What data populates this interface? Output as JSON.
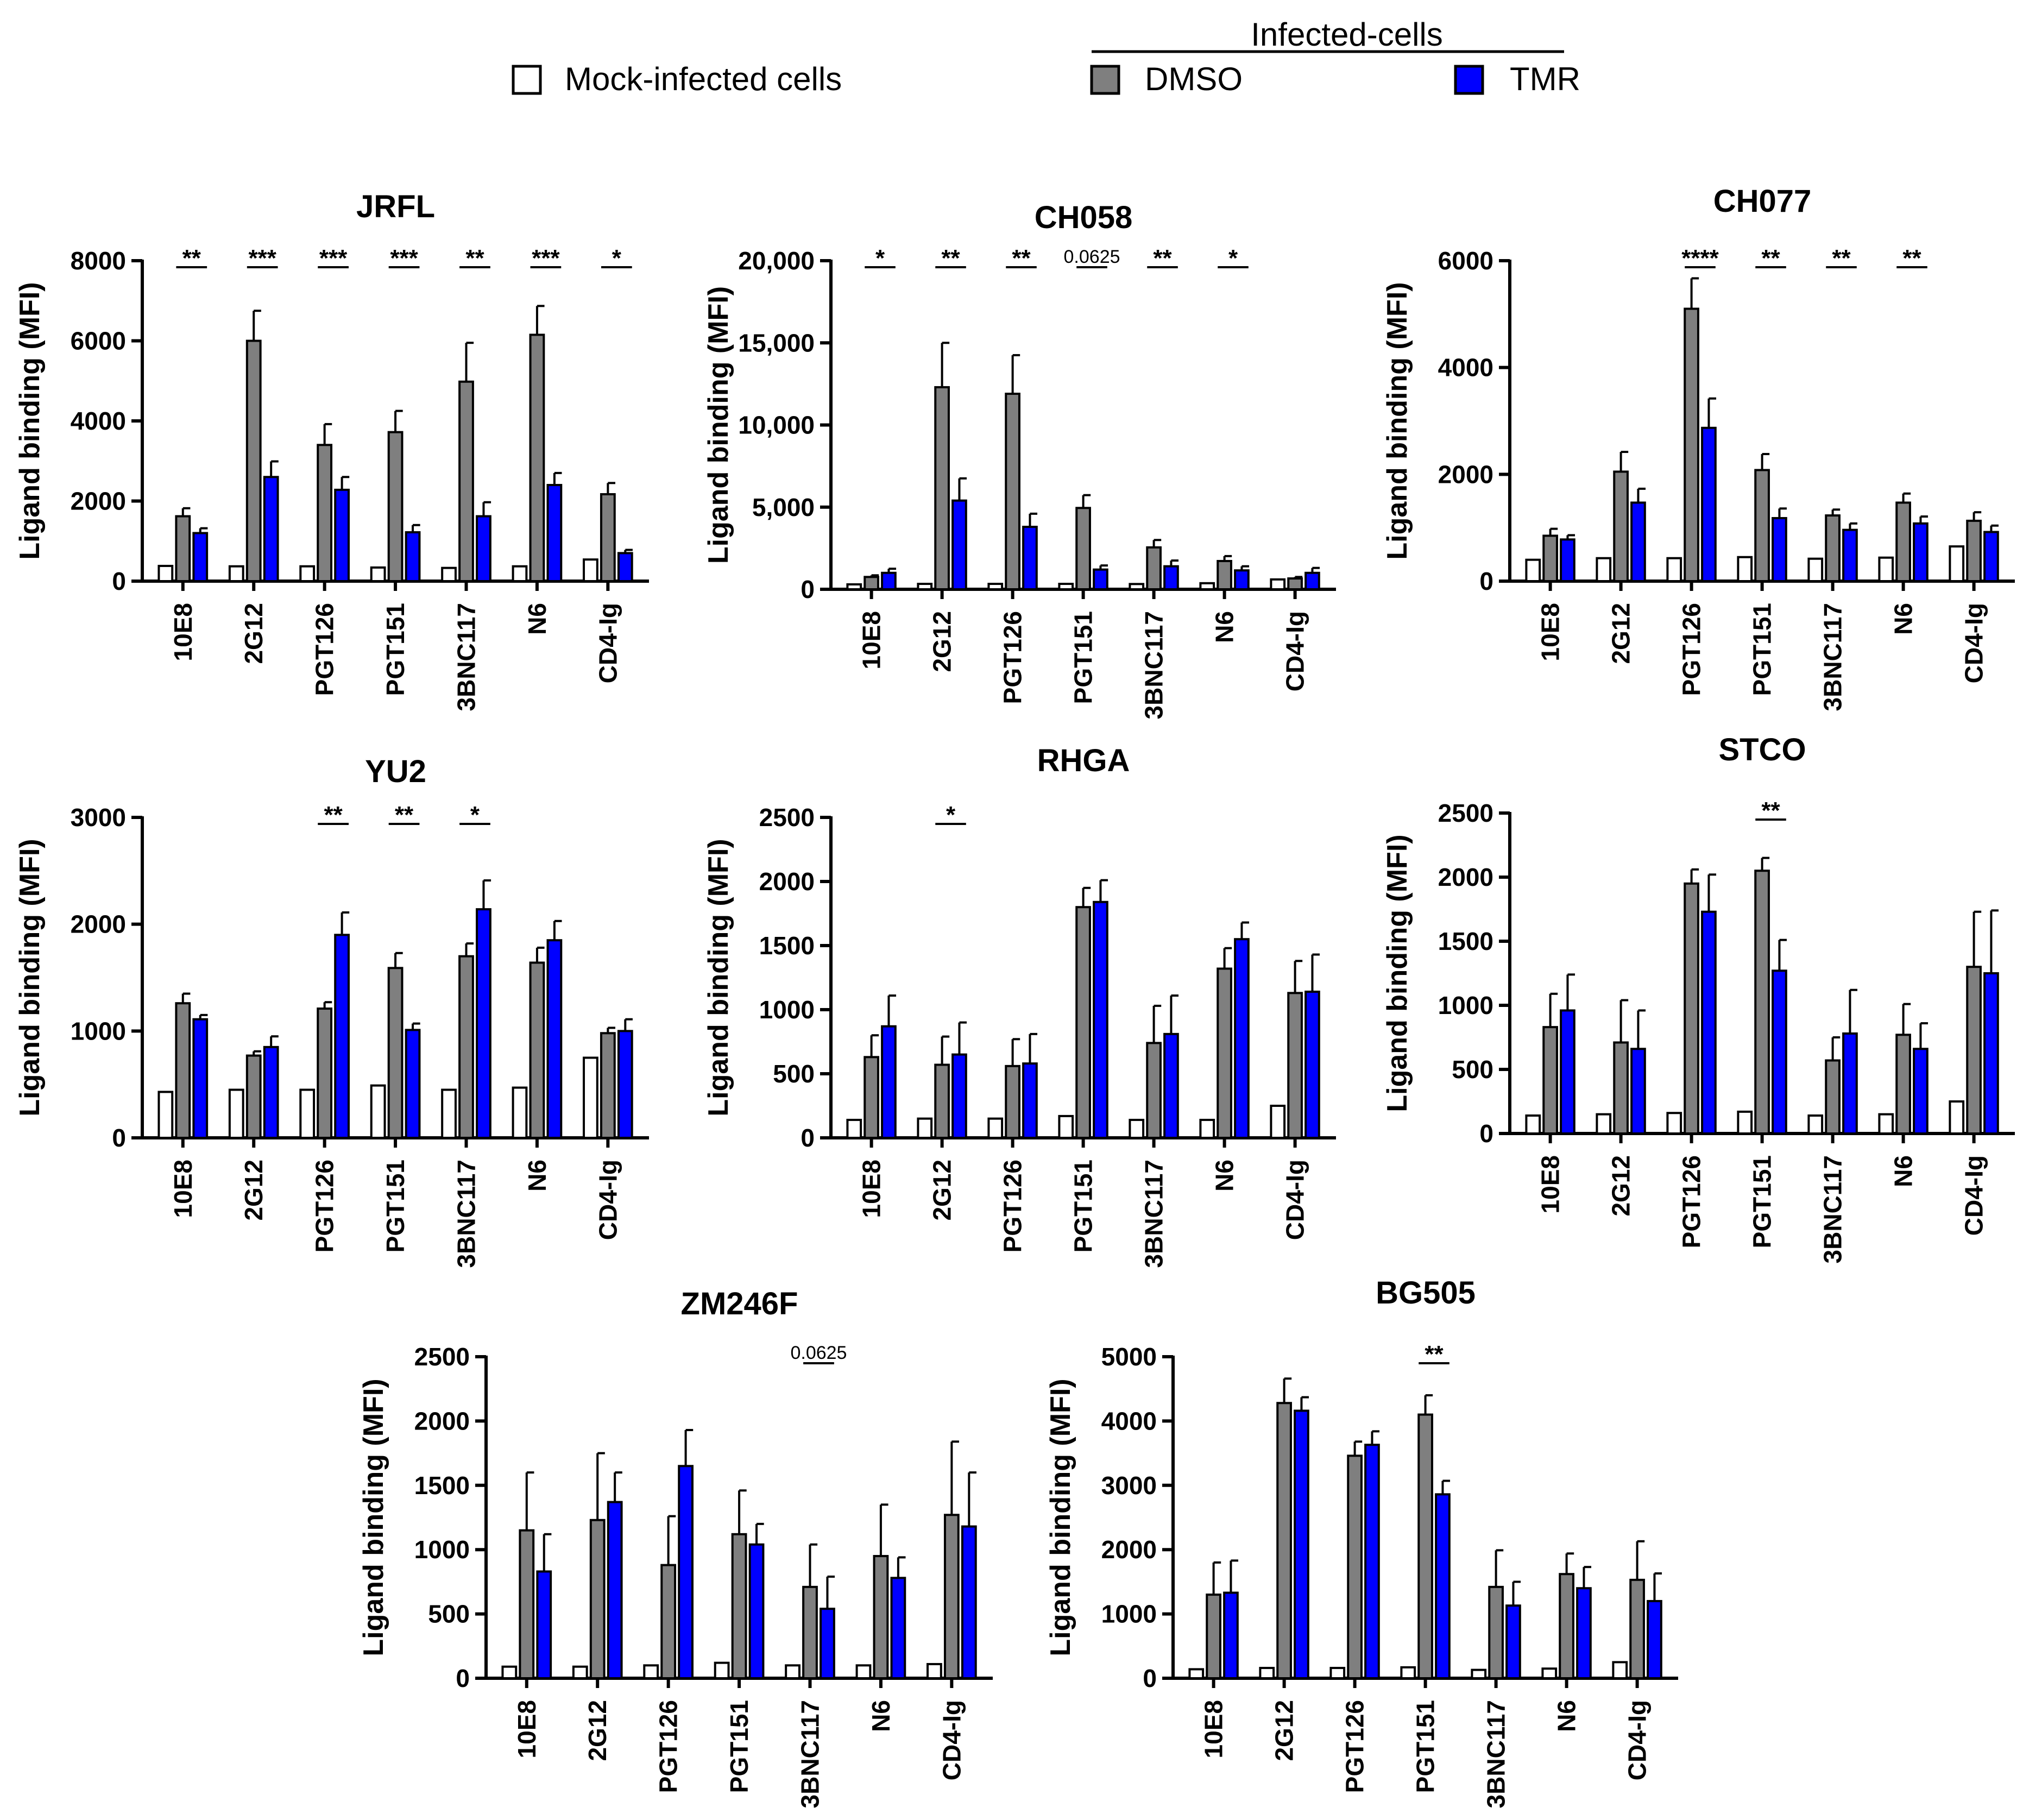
{
  "legend": {
    "mock_label": "Mock-infected cells",
    "group_title": "Infected-cells",
    "dmso_label": "DMSO",
    "tmr_label": "TMR",
    "colors": {
      "mock": "#ffffff",
      "dmso": "#7f7f7f",
      "tmr": "#0000ff",
      "stroke": "#000000"
    }
  },
  "chart_data": [
    {
      "type": "bar",
      "title": "JRFL",
      "ylabel": "Ligand binding (MFI)",
      "categories": [
        "10E8",
        "2G12",
        "PGT126",
        "PGT151",
        "3BNC117",
        "N6",
        "CD4-Ig"
      ],
      "ylim": [
        0,
        8000
      ],
      "yticks": [
        0,
        2000,
        4000,
        6000,
        8000
      ],
      "ytick_labels": [
        "0",
        "2000",
        "4000",
        "6000",
        "8000"
      ],
      "series": [
        {
          "name": "Mock-infected cells",
          "values": [
            380,
            370,
            370,
            340,
            330,
            370,
            540
          ],
          "errors": [
            0,
            0,
            0,
            0,
            0,
            0,
            0
          ]
        },
        {
          "name": "DMSO",
          "values": [
            1620,
            6000,
            3400,
            3720,
            4980,
            6150,
            2170
          ],
          "errors": [
            200,
            750,
            520,
            530,
            970,
            720,
            280
          ]
        },
        {
          "name": "TMR",
          "values": [
            1200,
            2600,
            2280,
            1220,
            1620,
            2400,
            700
          ],
          "errors": [
            120,
            390,
            320,
            180,
            350,
            300,
            80
          ]
        }
      ],
      "significance": [
        {
          "category": "10E8",
          "label": "**"
        },
        {
          "category": "2G12",
          "label": "***"
        },
        {
          "category": "PGT126",
          "label": "***"
        },
        {
          "category": "PGT151",
          "label": "***"
        },
        {
          "category": "3BNC117",
          "label": "**"
        },
        {
          "category": "N6",
          "label": "***"
        },
        {
          "category": "CD4-Ig",
          "label": "*"
        }
      ]
    },
    {
      "type": "bar",
      "title": "CH058",
      "ylabel": "Ligand binding (MFI)",
      "categories": [
        "10E8",
        "2G12",
        "PGT126",
        "PGT151",
        "3BNC117",
        "N6",
        "CD4-Ig"
      ],
      "ylim": [
        0,
        20000
      ],
      "yticks": [
        0,
        5000,
        10000,
        15000,
        20000
      ],
      "ytick_labels": [
        "0",
        "5,000",
        "10,000",
        "15,000",
        "20,000"
      ],
      "series": [
        {
          "name": "Mock-infected cells",
          "values": [
            300,
            330,
            330,
            330,
            320,
            370,
            600
          ],
          "errors": [
            0,
            0,
            0,
            0,
            0,
            0,
            0
          ]
        },
        {
          "name": "DMSO",
          "values": [
            750,
            12300,
            11900,
            4950,
            2550,
            1720,
            660
          ],
          "errors": [
            100,
            2700,
            2350,
            780,
            450,
            300,
            90
          ]
        },
        {
          "name": "TMR",
          "values": [
            1000,
            5400,
            3800,
            1200,
            1400,
            1150,
            1000
          ],
          "errors": [
            250,
            1350,
            800,
            250,
            350,
            250,
            300
          ]
        }
      ],
      "significance": [
        {
          "category": "10E8",
          "label": "*"
        },
        {
          "category": "2G12",
          "label": "**"
        },
        {
          "category": "PGT126",
          "label": "**"
        },
        {
          "category": "PGT151",
          "label": "0.0625"
        },
        {
          "category": "3BNC117",
          "label": "**"
        },
        {
          "category": "N6",
          "label": "*"
        }
      ]
    },
    {
      "type": "bar",
      "title": "CH077",
      "ylabel": "Ligand binding (MFI)",
      "categories": [
        "10E8",
        "2G12",
        "PGT126",
        "PGT151",
        "3BNC117",
        "N6",
        "CD4-Ig"
      ],
      "ylim": [
        0,
        6000
      ],
      "yticks": [
        0,
        2000,
        4000,
        6000
      ],
      "ytick_labels": [
        "0",
        "2000",
        "4000",
        "6000"
      ],
      "series": [
        {
          "name": "Mock-infected cells",
          "values": [
            400,
            430,
            430,
            450,
            420,
            440,
            650
          ],
          "errors": [
            0,
            0,
            0,
            0,
            0,
            0,
            0
          ]
        },
        {
          "name": "DMSO",
          "values": [
            850,
            2050,
            5100,
            2080,
            1230,
            1470,
            1130
          ],
          "errors": [
            130,
            370,
            570,
            300,
            110,
            170,
            160
          ]
        },
        {
          "name": "TMR",
          "values": [
            780,
            1470,
            2870,
            1180,
            960,
            1080,
            920
          ],
          "errors": [
            80,
            260,
            550,
            180,
            120,
            130,
            120
          ]
        }
      ],
      "significance": [
        {
          "category": "PGT126",
          "label": "****"
        },
        {
          "category": "PGT151",
          "label": "**"
        },
        {
          "category": "3BNC117",
          "label": "**"
        },
        {
          "category": "N6",
          "label": "**"
        }
      ]
    },
    {
      "type": "bar",
      "title": "YU2",
      "ylabel": "Ligand binding (MFI)",
      "categories": [
        "10E8",
        "2G12",
        "PGT126",
        "PGT151",
        "3BNC117",
        "N6",
        "CD4-Ig"
      ],
      "ylim": [
        0,
        3000
      ],
      "yticks": [
        0,
        1000,
        2000,
        3000
      ],
      "ytick_labels": [
        "0",
        "1000",
        "2000",
        "3000"
      ],
      "series": [
        {
          "name": "Mock-infected cells",
          "values": [
            430,
            450,
            450,
            490,
            450,
            470,
            750
          ],
          "errors": [
            0,
            0,
            0,
            0,
            0,
            0,
            0
          ]
        },
        {
          "name": "DMSO",
          "values": [
            1260,
            770,
            1210,
            1590,
            1700,
            1640,
            980
          ],
          "errors": [
            90,
            40,
            60,
            140,
            120,
            140,
            50
          ]
        },
        {
          "name": "TMR",
          "values": [
            1110,
            850,
            1900,
            1010,
            2140,
            1850,
            1000
          ],
          "errors": [
            40,
            100,
            210,
            60,
            270,
            180,
            110
          ]
        }
      ],
      "significance": [
        {
          "category": "PGT126",
          "label": "**"
        },
        {
          "category": "PGT151",
          "label": "**"
        },
        {
          "category": "3BNC117",
          "label": "*"
        }
      ]
    },
    {
      "type": "bar",
      "title": "RHGA",
      "ylabel": "Ligand binding (MFI)",
      "categories": [
        "10E8",
        "2G12",
        "PGT126",
        "PGT151",
        "3BNC117",
        "N6",
        "CD4-Ig"
      ],
      "ylim": [
        0,
        2500
      ],
      "yticks": [
        0,
        500,
        1000,
        1500,
        2000,
        2500
      ],
      "ytick_labels": [
        "0",
        "500",
        "1000",
        "1500",
        "2000",
        "2500"
      ],
      "series": [
        {
          "name": "Mock-infected cells",
          "values": [
            140,
            150,
            150,
            170,
            140,
            140,
            250
          ],
          "errors": [
            0,
            0,
            0,
            0,
            0,
            0,
            0
          ]
        },
        {
          "name": "DMSO",
          "values": [
            630,
            570,
            560,
            1800,
            740,
            1320,
            1130
          ],
          "errors": [
            170,
            220,
            210,
            150,
            290,
            160,
            250
          ]
        },
        {
          "name": "TMR",
          "values": [
            870,
            650,
            580,
            1840,
            810,
            1550,
            1140
          ],
          "errors": [
            240,
            250,
            230,
            170,
            300,
            130,
            290
          ]
        }
      ],
      "significance": [
        {
          "category": "2G12",
          "label": "*"
        }
      ]
    },
    {
      "type": "bar",
      "title": "STCO",
      "ylabel": "Ligand binding (MFI)",
      "categories": [
        "10E8",
        "2G12",
        "PGT126",
        "PGT151",
        "3BNC117",
        "N6",
        "CD4-Ig"
      ],
      "ylim": [
        0,
        2500
      ],
      "yticks": [
        0,
        500,
        1000,
        1500,
        2000,
        2500
      ],
      "ytick_labels": [
        "0",
        "500",
        "1000",
        "1500",
        "2000",
        "2500"
      ],
      "series": [
        {
          "name": "Mock-infected cells",
          "values": [
            140,
            150,
            160,
            170,
            140,
            150,
            250
          ],
          "errors": [
            0,
            0,
            0,
            0,
            0,
            0,
            0
          ]
        },
        {
          "name": "DMSO",
          "values": [
            830,
            710,
            1950,
            2050,
            570,
            770,
            1300
          ],
          "errors": [
            260,
            330,
            110,
            100,
            180,
            240,
            430
          ]
        },
        {
          "name": "TMR",
          "values": [
            960,
            660,
            1730,
            1270,
            780,
            660,
            1250
          ],
          "errors": [
            280,
            300,
            290,
            240,
            340,
            200,
            490
          ]
        }
      ],
      "significance": [
        {
          "category": "PGT151",
          "label": "**"
        }
      ]
    },
    {
      "type": "bar",
      "title": "ZM246F",
      "ylabel": "Ligand binding (MFI)",
      "categories": [
        "10E8",
        "2G12",
        "PGT126",
        "PGT151",
        "3BNC117",
        "N6",
        "CD4-Ig"
      ],
      "ylim": [
        0,
        2500
      ],
      "yticks": [
        0,
        500,
        1000,
        1500,
        2000,
        2500
      ],
      "ytick_labels": [
        "0",
        "500",
        "1000",
        "1500",
        "2000",
        "2500"
      ],
      "series": [
        {
          "name": "Mock-infected cells",
          "values": [
            90,
            90,
            100,
            120,
            100,
            100,
            110
          ],
          "errors": [
            0,
            0,
            0,
            0,
            0,
            0,
            0
          ]
        },
        {
          "name": "DMSO",
          "values": [
            1150,
            1230,
            880,
            1120,
            710,
            950,
            1270
          ],
          "errors": [
            450,
            520,
            380,
            340,
            330,
            400,
            570
          ]
        },
        {
          "name": "TMR",
          "values": [
            830,
            1370,
            1650,
            1040,
            540,
            780,
            1180
          ],
          "errors": [
            290,
            230,
            280,
            160,
            250,
            160,
            420
          ]
        }
      ],
      "significance": [
        {
          "category": "3BNC117",
          "label": "0.0625"
        }
      ]
    },
    {
      "type": "bar",
      "title": "BG505",
      "ylabel": "Ligand binding (MFI)",
      "categories": [
        "10E8",
        "2G12",
        "PGT126",
        "PGT151",
        "3BNC117",
        "N6",
        "CD4-Ig"
      ],
      "ylim": [
        0,
        5000
      ],
      "yticks": [
        0,
        1000,
        2000,
        3000,
        4000,
        5000
      ],
      "ytick_labels": [
        "0",
        "1000",
        "2000",
        "3000",
        "4000",
        "5000"
      ],
      "series": [
        {
          "name": "Mock-infected cells",
          "values": [
            140,
            160,
            160,
            170,
            130,
            150,
            250
          ],
          "errors": [
            0,
            0,
            0,
            0,
            0,
            0,
            0
          ]
        },
        {
          "name": "DMSO",
          "values": [
            1300,
            4280,
            3460,
            4100,
            1420,
            1620,
            1530
          ],
          "errors": [
            500,
            380,
            220,
            300,
            570,
            320,
            600
          ]
        },
        {
          "name": "TMR",
          "values": [
            1330,
            4160,
            3630,
            2860,
            1130,
            1400,
            1200
          ],
          "errors": [
            500,
            210,
            210,
            210,
            370,
            330,
            430
          ]
        }
      ],
      "significance": [
        {
          "category": "PGT151",
          "label": "**"
        }
      ]
    }
  ]
}
